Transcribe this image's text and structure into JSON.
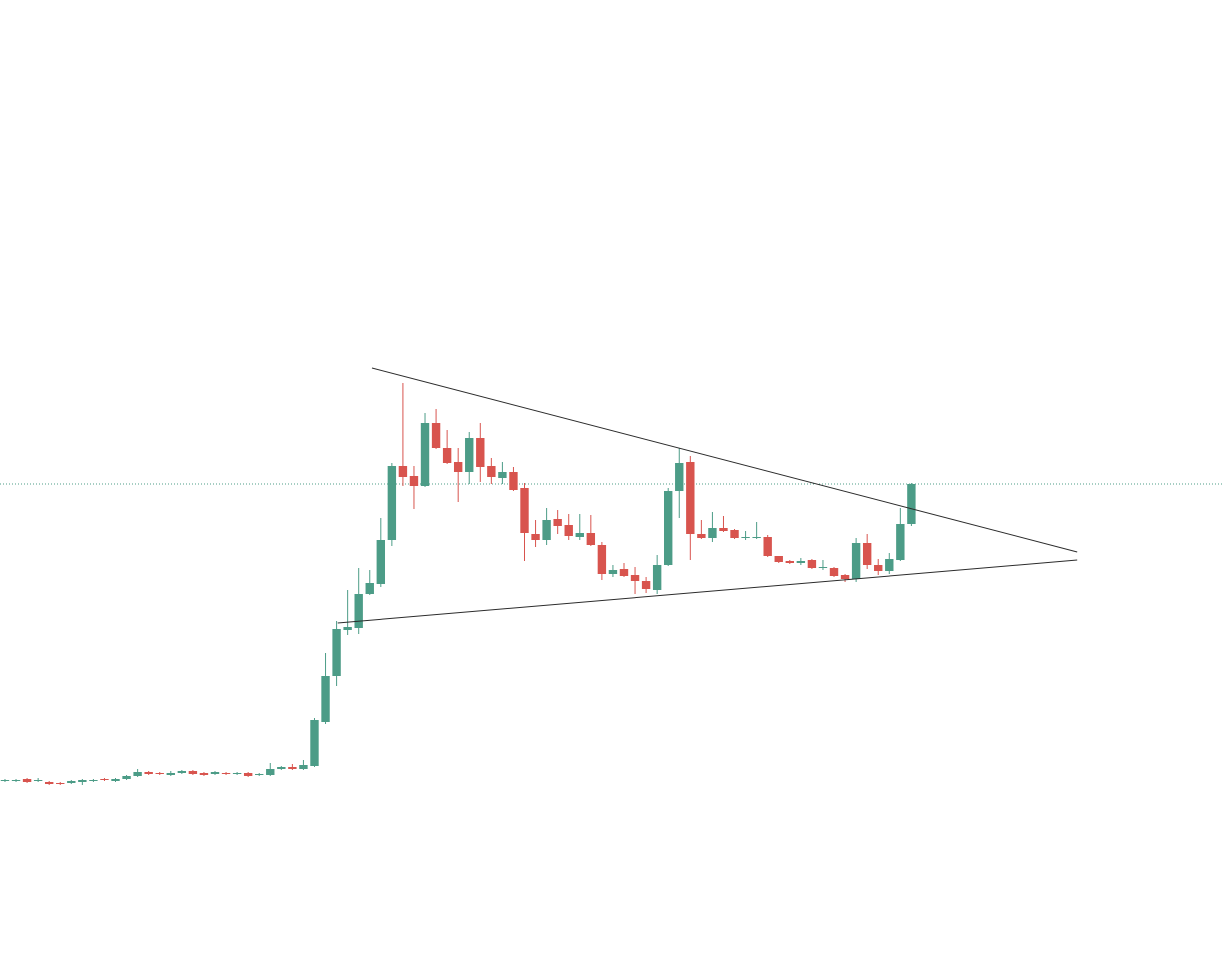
{
  "chart_data": {
    "type": "candlestick",
    "up_color": "#4c9c87",
    "down_color": "#d8544e",
    "trendline_color": "#2b2b2b",
    "price_line_color": "#4c9c87",
    "xlim": [
      -0.45,
      110.1
    ],
    "ylim": [
      26,
      1000
    ],
    "open": [
      219,
      219,
      221,
      219,
      218,
      217,
      217,
      218,
      219,
      221,
      219,
      221,
      224,
      228,
      227,
      225,
      227,
      229,
      227,
      226,
      227,
      226,
      227,
      225,
      225,
      231,
      233,
      231,
      234,
      278,
      324,
      370,
      372,
      406,
      416,
      460,
      534,
      524,
      514,
      577,
      552,
      538,
      528,
      562,
      534,
      522,
      528,
      512,
      466,
      460,
      481,
      475,
      463,
      467,
      455,
      426,
      431,
      425,
      419,
      410,
      435,
      509,
      538,
      466,
      462,
      472,
      470,
      462,
      462,
      463,
      444,
      439,
      437,
      440,
      432,
      432,
      425,
      421,
      457,
      435,
      429,
      440,
      476
    ],
    "high": [
      221,
      221,
      222,
      222,
      219,
      218,
      220,
      221,
      221,
      222,
      222,
      225,
      231,
      229,
      228,
      229,
      230,
      230,
      228,
      229,
      228,
      228,
      228,
      227,
      237,
      234,
      236,
      240,
      282,
      347,
      379,
      410,
      432,
      430,
      482,
      537,
      617,
      534,
      587,
      591,
      570,
      552,
      568,
      577,
      542,
      538,
      533,
      517,
      480,
      492,
      490,
      486,
      486,
      485,
      458,
      435,
      437,
      433,
      423,
      445,
      512,
      552,
      544,
      480,
      488,
      484,
      471,
      469,
      478,
      465,
      444,
      440,
      442,
      441,
      440,
      433,
      426,
      462,
      466,
      441,
      447,
      492,
      517
    ],
    "low": [
      218,
      218,
      217,
      218,
      215,
      215,
      216,
      215,
      218,
      219,
      218,
      220,
      223,
      225,
      225,
      224,
      226,
      225,
      224,
      225,
      225,
      225,
      223,
      224,
      224,
      230,
      230,
      230,
      233,
      276,
      314,
      365,
      366,
      405,
      413,
      454,
      514,
      491,
      513,
      551,
      536,
      498,
      516,
      518,
      516,
      516,
      509,
      439,
      453,
      455,
      466,
      460,
      460,
      454,
      420,
      423,
      423,
      406,
      407,
      406,
      434,
      482,
      440,
      461,
      458,
      468,
      461,
      460,
      461,
      443,
      437,
      436,
      435,
      431,
      430,
      423,
      418,
      418,
      431,
      425,
      426,
      439,
      474
    ],
    "close": [
      220,
      220,
      218,
      220,
      216,
      216,
      219,
      220,
      220,
      220,
      221,
      224,
      228,
      226,
      226,
      227,
      229,
      226,
      225,
      228,
      226,
      227,
      224,
      226,
      231,
      233,
      231,
      235,
      280,
      324,
      371,
      373,
      406,
      417,
      460,
      534,
      523,
      514,
      577,
      552,
      537,
      528,
      562,
      533,
      523,
      528,
      510,
      467,
      460,
      480,
      474,
      464,
      467,
      455,
      426,
      430,
      424,
      419,
      411,
      435,
      509,
      537,
      466,
      462,
      472,
      469,
      462,
      463,
      463,
      444,
      438,
      437,
      439,
      432,
      433,
      424,
      421,
      457,
      435,
      429,
      441,
      476,
      516
    ],
    "trendlines": [
      {
        "x": [
          33.2,
          97.0
        ],
        "values": [
          632,
          448
        ]
      },
      {
        "x": [
          30.1,
          97.0
        ],
        "values": [
          377,
          440
        ]
      }
    ]
  }
}
